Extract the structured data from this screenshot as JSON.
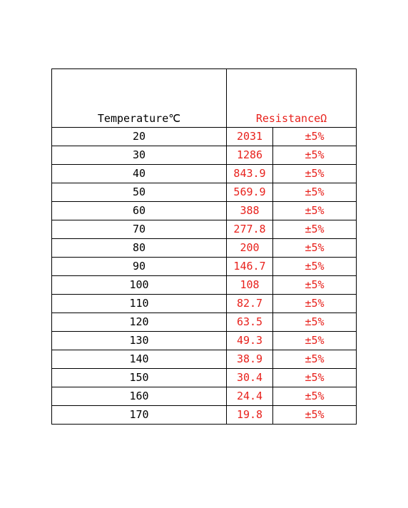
{
  "header": {
    "temperature": "Temperature℃",
    "resistance": "ResistanceΩ"
  },
  "rows": [
    {
      "temp": "20",
      "res": "2031",
      "tol": "±5%"
    },
    {
      "temp": "30",
      "res": "1286",
      "tol": "±5%"
    },
    {
      "temp": "40",
      "res": "843.9",
      "tol": "±5%"
    },
    {
      "temp": "50",
      "res": "569.9",
      "tol": "±5%"
    },
    {
      "temp": "60",
      "res": "388",
      "tol": "±5%"
    },
    {
      "temp": "70",
      "res": "277.8",
      "tol": "±5%"
    },
    {
      "temp": "80",
      "res": "200",
      "tol": "±5%"
    },
    {
      "temp": "90",
      "res": "146.7",
      "tol": "±5%"
    },
    {
      "temp": "100",
      "res": "108",
      "tol": "±5%"
    },
    {
      "temp": "110",
      "res": "82.7",
      "tol": "±5%"
    },
    {
      "temp": "120",
      "res": "63.5",
      "tol": "±5%"
    },
    {
      "temp": "130",
      "res": "49.3",
      "tol": "±5%"
    },
    {
      "temp": "140",
      "res": "38.9",
      "tol": "±5%"
    },
    {
      "temp": "150",
      "res": "30.4",
      "tol": "±5%"
    },
    {
      "temp": "160",
      "res": "24.4",
      "tol": "±5%"
    },
    {
      "temp": "170",
      "res": "19.8",
      "tol": "±5%"
    }
  ],
  "colors": {
    "text": "#000000",
    "accent_red": "#e8211c"
  }
}
